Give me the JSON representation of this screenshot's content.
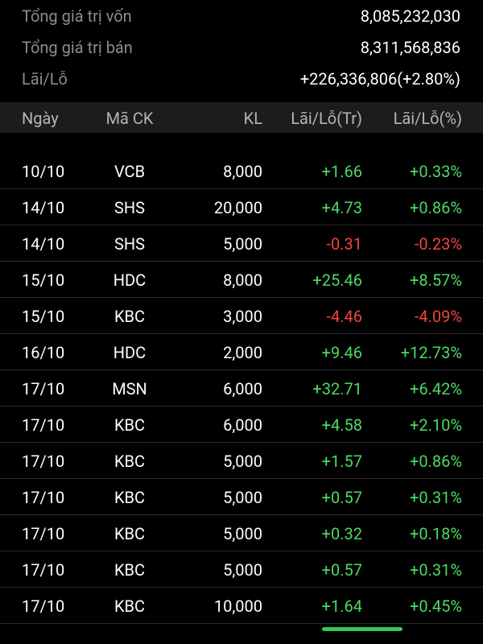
{
  "summary": [
    {
      "label": "Tổng giá trị vốn",
      "value": "8,085,232,030"
    },
    {
      "label": "Tổng giá trị bán",
      "value": "8,311,568,836"
    },
    {
      "label": "Lãi/Lỗ",
      "value": "+226,336,806(+2.80%)"
    }
  ],
  "table": {
    "headers": [
      "Ngày",
      "Mã CK",
      "KL",
      "Lãi/Lỗ(Tr)",
      "Lãi/Lỗ(%)"
    ],
    "rows": [
      [
        "10/10",
        "VCB",
        "8,000",
        "+1.66",
        "+0.33%"
      ],
      [
        "14/10",
        "SHS",
        "20,000",
        "+4.73",
        "+0.86%"
      ],
      [
        "14/10",
        "SHS",
        "5,000",
        "-0.31",
        "-0.23%"
      ],
      [
        "15/10",
        "HDC",
        "8,000",
        "+25.46",
        "+8.57%"
      ],
      [
        "15/10",
        "KBC",
        "3,000",
        "-4.46",
        "-4.09%"
      ],
      [
        "16/10",
        "HDC",
        "2,000",
        "+9.46",
        "+12.73%"
      ],
      [
        "17/10",
        "MSN",
        "6,000",
        "+32.71",
        "+6.42%"
      ],
      [
        "17/10",
        "KBC",
        "6,000",
        "+4.58",
        "+2.10%"
      ],
      [
        "17/10",
        "KBC",
        "5,000",
        "+1.57",
        "+0.86%"
      ],
      [
        "17/10",
        "KBC",
        "5,000",
        "+0.57",
        "+0.31%"
      ],
      [
        "17/10",
        "KBC",
        "5,000",
        "+0.32",
        "+0.18%"
      ],
      [
        "17/10",
        "KBC",
        "5,000",
        "+0.57",
        "+0.31%"
      ],
      [
        "17/10",
        "KBC",
        "10,000",
        "+1.64",
        "+0.45%"
      ]
    ]
  }
}
